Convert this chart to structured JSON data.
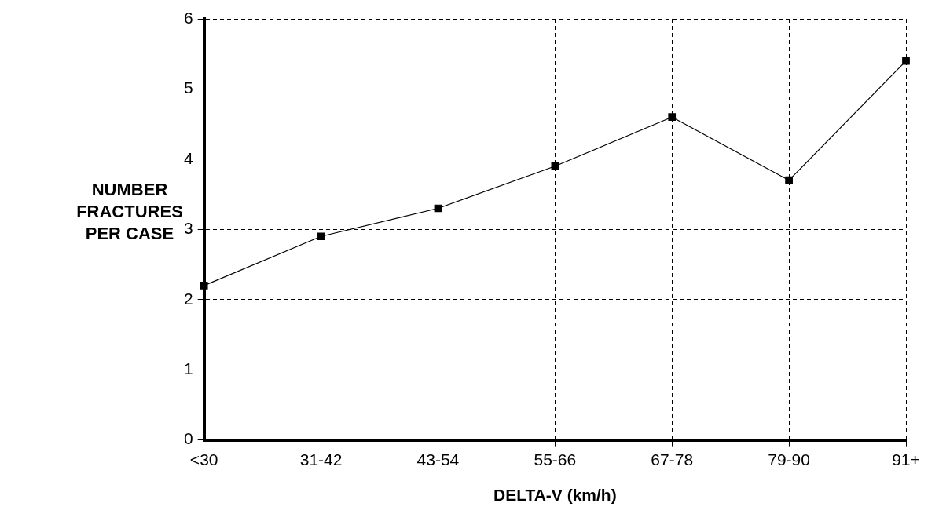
{
  "chart_data": {
    "type": "line",
    "xlabel": "DELTA-V (km/h)",
    "ylabel": "NUMBER FRACTURES PER CASE",
    "categories": [
      "<30",
      "31-42",
      "43-54",
      "55-66",
      "67-78",
      "79-90",
      "91+"
    ],
    "values": [
      2.2,
      2.9,
      3.3,
      3.9,
      4.6,
      3.7,
      5.4
    ],
    "color": "#000000",
    "ylim": [
      0,
      6
    ],
    "yticks": [
      0,
      1,
      2,
      3,
      4,
      5,
      6
    ],
    "grid": true,
    "marker": "square",
    "line_style": "solid"
  }
}
